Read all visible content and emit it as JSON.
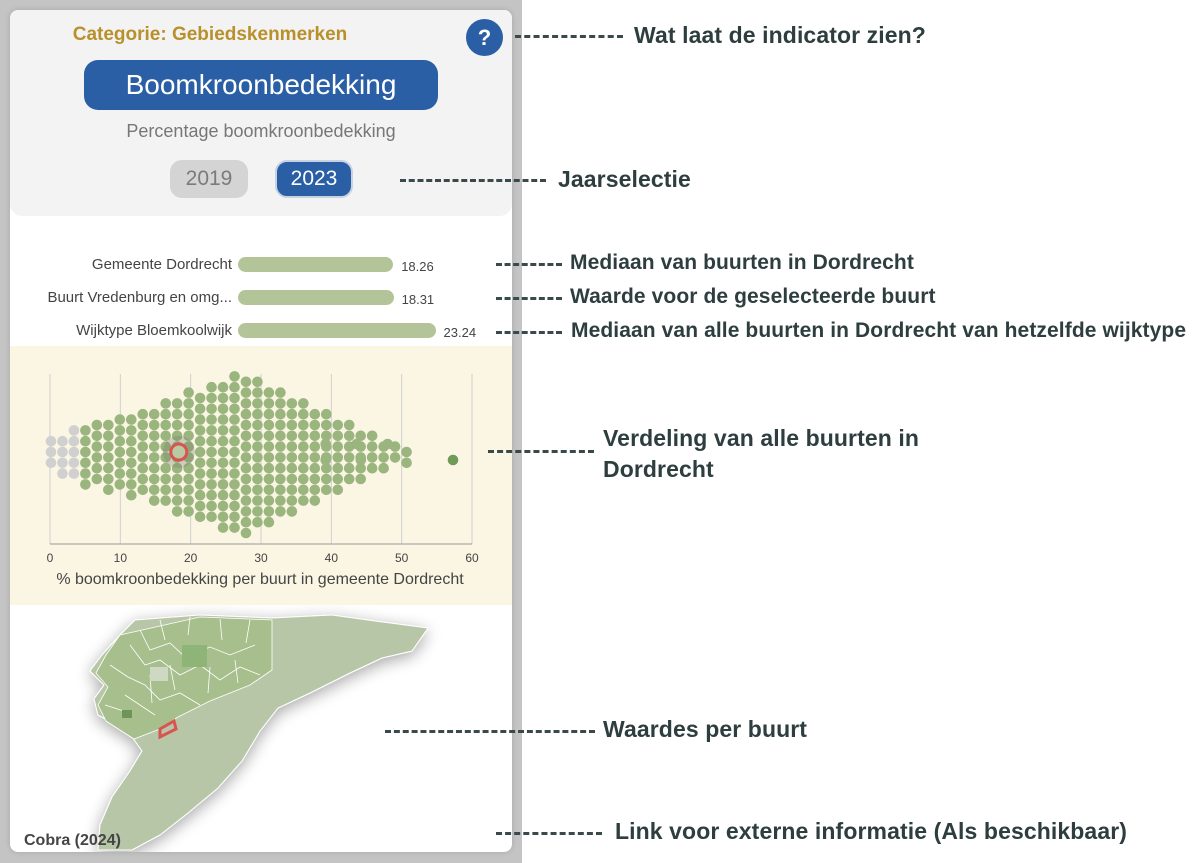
{
  "panel": {
    "category": "Categorie: Gebiedskenmerken",
    "help_label": "?",
    "title": "Boomkroonbedekking",
    "subtitle": "Percentage boomkroonbedekking",
    "years": [
      "2019",
      "2023"
    ],
    "selected_year": "2023"
  },
  "comparison": [
    {
      "label": "Gemeente Dordrecht",
      "value": 18.26,
      "value_text": "18.26"
    },
    {
      "label": "Buurt Vredenburg en omg...",
      "value": 18.31,
      "value_text": "18.31"
    },
    {
      "label": "Wijktype Bloemkoolwijk",
      "value": 23.24,
      "value_text": "23.24"
    }
  ],
  "chart_data": {
    "type": "scatter",
    "title": "",
    "xlabel": "% boomkroonbedekking per buurt in gemeente Dordrecht",
    "ylabel": "",
    "xlim": [
      0,
      60
    ],
    "xticks": [
      "0",
      "10",
      "20",
      "30",
      "40",
      "50",
      "60"
    ],
    "grid": true,
    "selected_value": 18.31,
    "outliers": [
      39.2,
      39.2,
      43.6,
      44.2,
      48.0,
      57.3
    ]
  },
  "map": {
    "source_link": "Cobra (2024)"
  },
  "annotations": {
    "help": "Wat laat de indicator zien?",
    "years": "Jaarselectie",
    "median_city": "Mediaan van buurten in Dordrecht",
    "selected": "Waarde voor de geselecteerde buurt",
    "median_type": "Mediaan van alle buurten in Dordrecht van hetzelfde wijktype",
    "distribution": "Verdeling van alle buurten in Dordrecht",
    "map": "Waardes per buurt",
    "link": "Link voor externe informatie (Als beschikbaar)"
  },
  "colors": {
    "accent_blue": "#2a5fa6",
    "category_gold": "#b8912c",
    "bar_green": "#b3c598",
    "dot_green": "#9bb57f",
    "dot_grey": "#d0d0d0",
    "highlight_red": "#d9534f",
    "dist_background": "#faf6e3"
  }
}
